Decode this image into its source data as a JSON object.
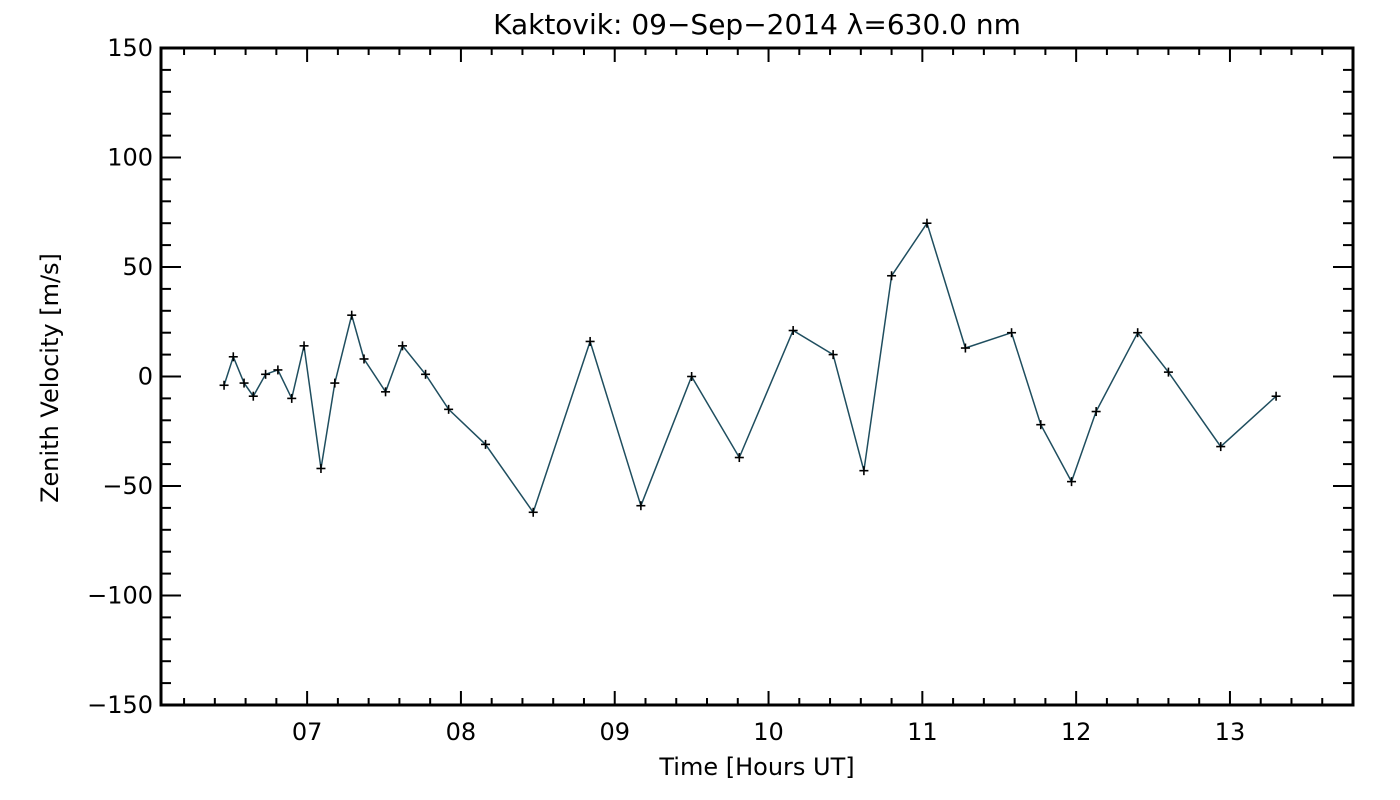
{
  "chart_data": {
    "type": "line",
    "title": "Kaktovik: 09−Sep−2014 λ=630.0 nm",
    "xlabel": "Time [Hours UT]",
    "ylabel": "Zenith Velocity [m/s]",
    "xlim": [
      6.05,
      13.8
    ],
    "ylim": [
      -150,
      150
    ],
    "x_ticks": [
      7,
      8,
      9,
      10,
      11,
      12,
      13
    ],
    "x_tick_labels": [
      "07",
      "08",
      "09",
      "10",
      "11",
      "12",
      "13"
    ],
    "y_ticks": [
      -150,
      -100,
      -50,
      0,
      50,
      100,
      150
    ],
    "y_tick_labels": [
      "−150",
      "−100",
      "−50",
      "0",
      "50",
      "100",
      "150"
    ],
    "grid": false,
    "marker": "plus",
    "line_color": "#1f4e5f",
    "marker_color": "#000000",
    "series": [
      {
        "points": [
          [
            6.46,
            -4
          ],
          [
            6.52,
            9
          ],
          [
            6.59,
            -3
          ],
          [
            6.65,
            -9
          ],
          [
            6.73,
            1
          ],
          [
            6.81,
            3
          ],
          [
            6.9,
            -10
          ],
          [
            6.98,
            14
          ],
          [
            7.09,
            -42
          ],
          [
            7.18,
            -3
          ],
          [
            7.29,
            28
          ],
          [
            7.37,
            8
          ],
          [
            7.51,
            -7
          ],
          [
            7.62,
            14
          ],
          [
            7.77,
            1
          ],
          [
            7.92,
            -15
          ],
          [
            8.16,
            -31
          ],
          [
            8.47,
            -62
          ],
          [
            8.84,
            16
          ],
          [
            9.17,
            -59
          ],
          [
            9.5,
            0
          ],
          [
            9.81,
            -37
          ],
          [
            10.16,
            21
          ],
          [
            10.42,
            10
          ],
          [
            10.62,
            -43
          ],
          [
            10.8,
            46
          ],
          [
            11.03,
            70
          ],
          [
            11.28,
            13
          ],
          [
            11.58,
            20
          ],
          [
            11.77,
            -22
          ],
          [
            11.97,
            -48
          ],
          [
            12.13,
            -16
          ],
          [
            12.4,
            20
          ],
          [
            12.6,
            2
          ],
          [
            12.94,
            -32
          ],
          [
            13.3,
            -9
          ]
        ]
      }
    ]
  }
}
